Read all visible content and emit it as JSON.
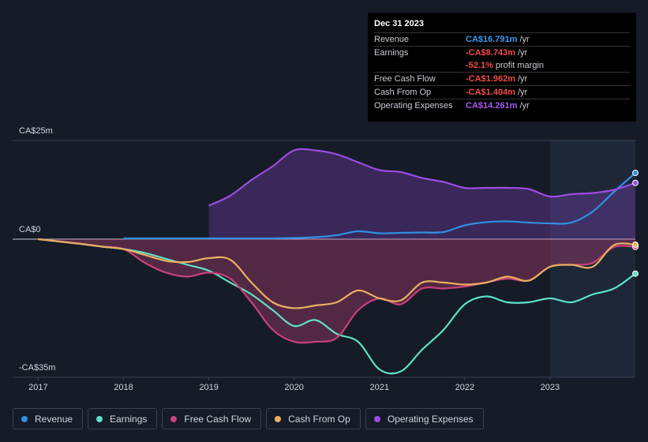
{
  "chart_data": {
    "type": "line",
    "x": [
      2017,
      2017.25,
      2017.5,
      2017.75,
      2018,
      2018.25,
      2018.5,
      2018.75,
      2019,
      2019.25,
      2019.5,
      2019.75,
      2020,
      2020.25,
      2020.5,
      2020.75,
      2021,
      2021.25,
      2021.5,
      2021.75,
      2022,
      2022.25,
      2022.5,
      2022.75,
      2023,
      2023.25,
      2023.5,
      2023.75,
      2024
    ],
    "series": [
      {
        "name": "Revenue",
        "color": "#2f8fe0",
        "values": [
          null,
          null,
          null,
          null,
          0.2,
          0.2,
          0.2,
          0.2,
          0.2,
          0.2,
          0.2,
          0.2,
          0.3,
          0.5,
          1,
          2,
          1.5,
          1.6,
          1.7,
          1.8,
          3.5,
          4.3,
          4.5,
          4.2,
          4,
          4.2,
          7,
          12,
          16.791
        ]
      },
      {
        "name": "Earnings",
        "color": "#5ee0c8",
        "values": [
          0,
          -0.6,
          -1.2,
          -1.9,
          -2.5,
          -3.5,
          -5,
          -6.5,
          -8,
          -11,
          -14,
          -18,
          -22,
          -20.5,
          -24,
          -26,
          -33,
          -33.5,
          -28,
          -23,
          -16.5,
          -14.5,
          -16,
          -16,
          -15,
          -16,
          -14,
          -12.5,
          -8.743
        ]
      },
      {
        "name": "Free Cash Flow",
        "color": "#c9417a",
        "values": [
          0,
          -0.6,
          -1.2,
          -1.9,
          -2.5,
          -6,
          -8.5,
          -9.5,
          -8.5,
          -10,
          -16,
          -23,
          -26,
          -26,
          -25,
          -18,
          -15,
          -16.5,
          -12.5,
          -12.5,
          -12,
          -11,
          -10,
          -10.5,
          -7,
          -6.5,
          -6,
          -2,
          -1.962
        ]
      },
      {
        "name": "Cash From Op",
        "color": "#e8b060",
        "values": [
          0,
          -0.6,
          -1.2,
          -1.9,
          -2.5,
          -4,
          -5.5,
          -5.8,
          -4.8,
          -5.2,
          -11,
          -16,
          -17.5,
          -16.8,
          -16,
          -13,
          -15,
          -15.5,
          -11,
          -11,
          -11.5,
          -11,
          -9.5,
          -10.5,
          -7,
          -6.5,
          -7,
          -1.5,
          -1.404
        ]
      },
      {
        "name": "Operating Expenses",
        "color": "#9b4de0",
        "values": [
          null,
          null,
          null,
          null,
          null,
          null,
          null,
          null,
          8.5,
          11,
          15,
          18.5,
          22.5,
          22.5,
          21.5,
          19.5,
          17.5,
          17,
          15.5,
          14.5,
          13,
          13,
          13,
          12.7,
          10.8,
          11.4,
          11.7,
          12.5,
          14.261
        ]
      }
    ],
    "xlim": [
      2016.7,
      2024
    ],
    "xticks": [
      2017,
      2018,
      2019,
      2020,
      2021,
      2022,
      2023
    ],
    "ylim": [
      -35,
      25
    ],
    "yticks": [
      {
        "value": -35,
        "label": "-CA$35m"
      },
      {
        "value": 0,
        "label": "CA$0"
      },
      {
        "value": 25,
        "label": "CA$25m"
      }
    ],
    "grid": true
  },
  "tooltip": {
    "date": "Dec 31 2023",
    "rows": [
      {
        "label": "Revenue",
        "value": "CA$16.791m",
        "unit": "/yr"
      },
      {
        "label": "Earnings",
        "value": "-CA$8.743m",
        "unit": "/yr"
      },
      {
        "label": "Free Cash Flow",
        "value": "-CA$1.962m",
        "unit": "/yr"
      },
      {
        "label": "Cash From Op",
        "value": "-CA$1.404m",
        "unit": "/yr"
      },
      {
        "label": "Operating Expenses",
        "value": "CA$14.261m",
        "unit": "/yr"
      }
    ],
    "margin": {
      "value": "-52.1%",
      "text": "profit margin"
    }
  }
}
